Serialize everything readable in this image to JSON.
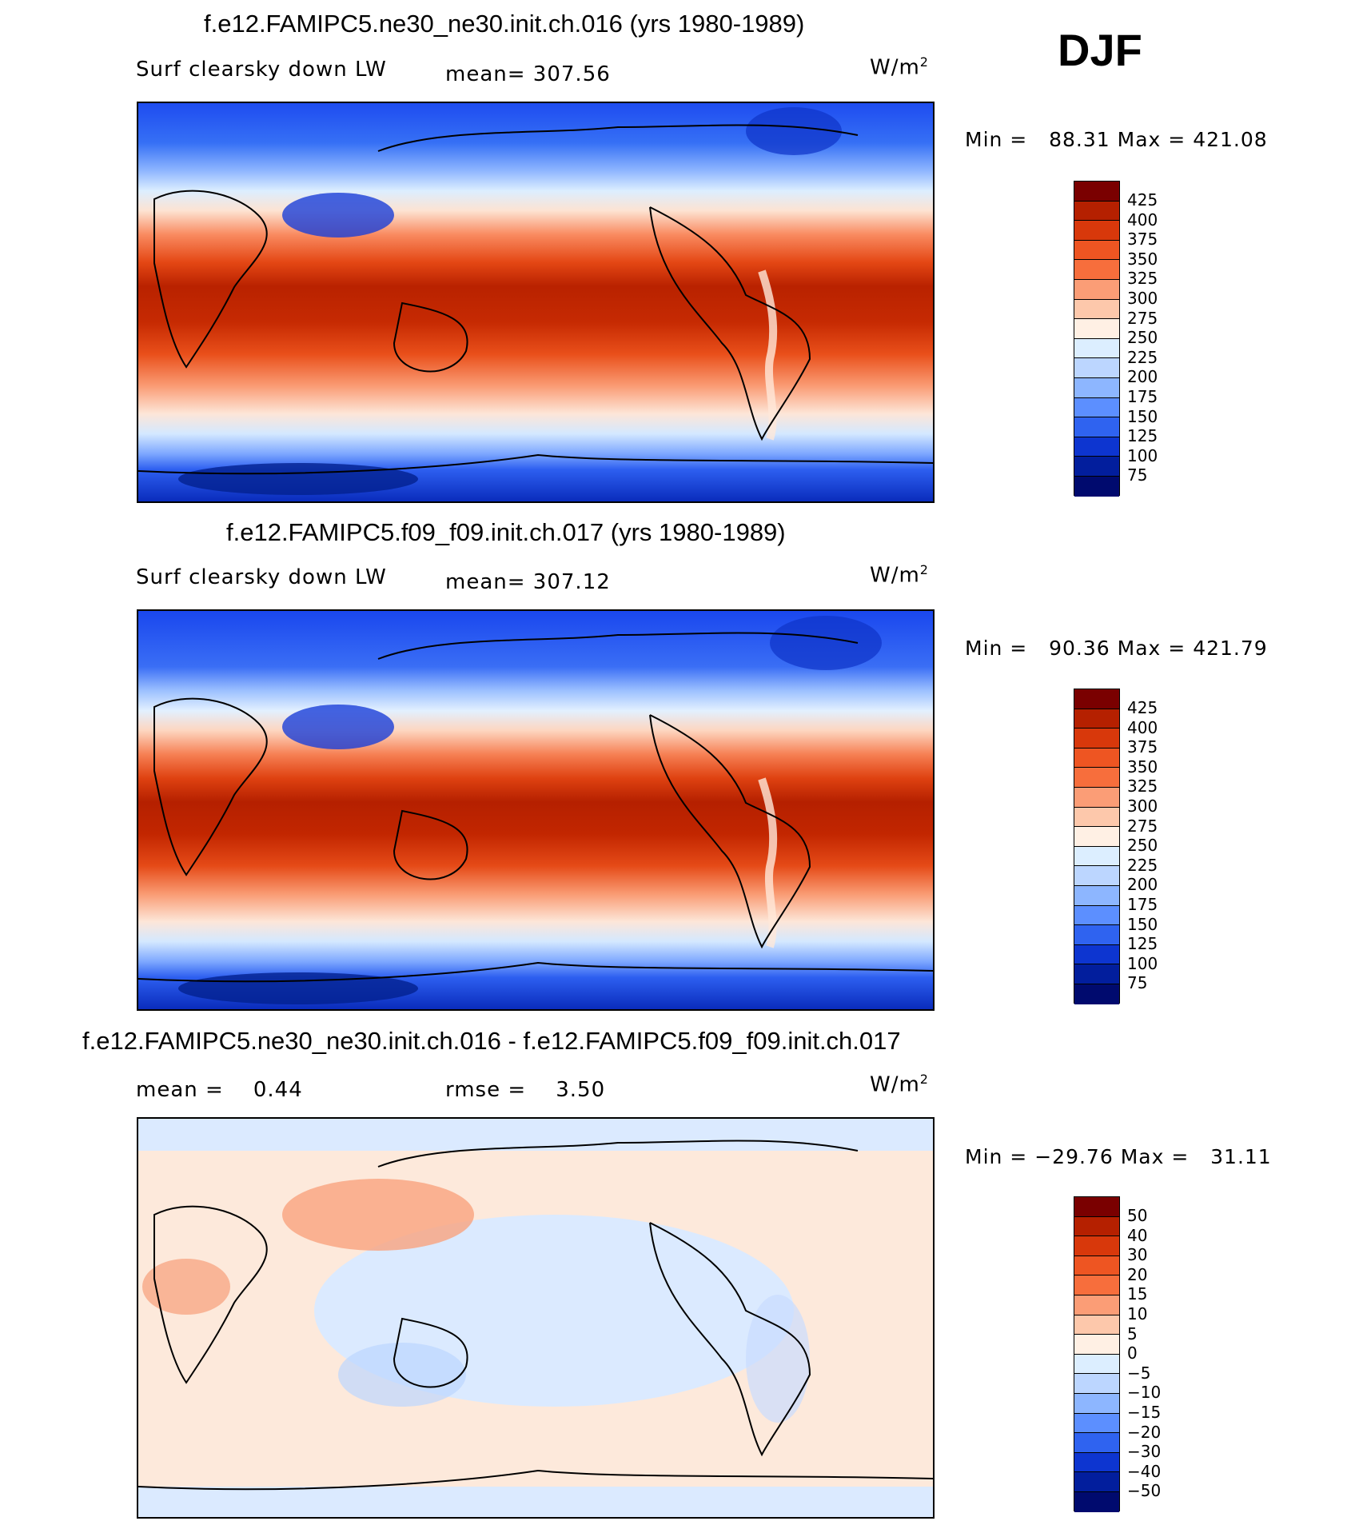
{
  "season": "DJF",
  "units_base": "W/m",
  "units_exp": "2",
  "panels": [
    {
      "title": "f.e12.FAMIPC5.ne30_ne30.init.ch.016 (yrs 1980-1989)",
      "variable": "Surf clearsky down LW",
      "stat_label": "mean=",
      "stat_value": "307.56",
      "min_label": "Min =",
      "min_value": "88.31",
      "max_label": "Max =",
      "max_value": "421.08"
    },
    {
      "title": "f.e12.FAMIPC5.f09_f09.init.ch.017 (yrs 1980-1989)",
      "variable": "Surf clearsky down LW",
      "stat_label": "mean=",
      "stat_value": "307.12",
      "min_label": "Min =",
      "min_value": "90.36",
      "max_label": "Max =",
      "max_value": "421.79"
    },
    {
      "title": "f.e12.FAMIPC5.ne30_ne30.init.ch.016 - f.e12.FAMIPC5.f09_f09.init.ch.017",
      "mean_label": "mean =",
      "mean_value": "0.44",
      "rmse_label": "rmse =",
      "rmse_value": "3.50",
      "min_label": "Min =",
      "min_value": "−29.76",
      "max_label": "Max =",
      "max_value": "31.11"
    }
  ],
  "chart_data": [
    {
      "type": "heatmap",
      "title": "f.e12.FAMIPC5.ne30_ne30.init.ch.016 (yrs 1980-1989)",
      "variable": "Surf clearsky down LW",
      "units": "W/m2",
      "mean": 307.56,
      "min": 88.31,
      "max": 421.08,
      "colorbar_levels": [
        425,
        400,
        375,
        350,
        325,
        300,
        275,
        250,
        225,
        200,
        175,
        150,
        125,
        100,
        75
      ],
      "colorbar_colors": [
        "#7a0000",
        "#b52000",
        "#d8380b",
        "#ee5522",
        "#f76e3c",
        "#fb9d76",
        "#fdc8ab",
        "#fff0e4",
        "#dceeff",
        "#bcd6ff",
        "#8db6ff",
        "#5c8fff",
        "#2f63f0",
        "#0d35d0",
        "#021e9d",
        "#000a6e"
      ]
    },
    {
      "type": "heatmap",
      "title": "f.e12.FAMIPC5.f09_f09.init.ch.017 (yrs 1980-1989)",
      "variable": "Surf clearsky down LW",
      "units": "W/m2",
      "mean": 307.12,
      "min": 90.36,
      "max": 421.79,
      "colorbar_levels": [
        425,
        400,
        375,
        350,
        325,
        300,
        275,
        250,
        225,
        200,
        175,
        150,
        125,
        100,
        75
      ],
      "colorbar_colors": [
        "#7a0000",
        "#b52000",
        "#d8380b",
        "#ee5522",
        "#f76e3c",
        "#fb9d76",
        "#fdc8ab",
        "#fff0e4",
        "#dceeff",
        "#bcd6ff",
        "#8db6ff",
        "#5c8fff",
        "#2f63f0",
        "#0d35d0",
        "#021e9d",
        "#000a6e"
      ]
    },
    {
      "type": "heatmap",
      "title": "f.e12.FAMIPC5.ne30_ne30.init.ch.016 - f.e12.FAMIPC5.f09_f09.init.ch.017",
      "units": "W/m2",
      "mean": 0.44,
      "rmse": 3.5,
      "min": -29.76,
      "max": 31.11,
      "colorbar_levels": [
        50,
        40,
        30,
        20,
        15,
        10,
        5,
        0,
        -5,
        -10,
        -15,
        -20,
        -30,
        -40,
        -50
      ],
      "colorbar_colors": [
        "#7a0000",
        "#b52000",
        "#d8380b",
        "#ee5522",
        "#f76e3c",
        "#fb9d76",
        "#fdc8ab",
        "#fff0e4",
        "#dceeff",
        "#bcd6ff",
        "#8db6ff",
        "#5c8fff",
        "#2f63f0",
        "#0d35d0",
        "#021e9d",
        "#000a6e"
      ]
    }
  ]
}
